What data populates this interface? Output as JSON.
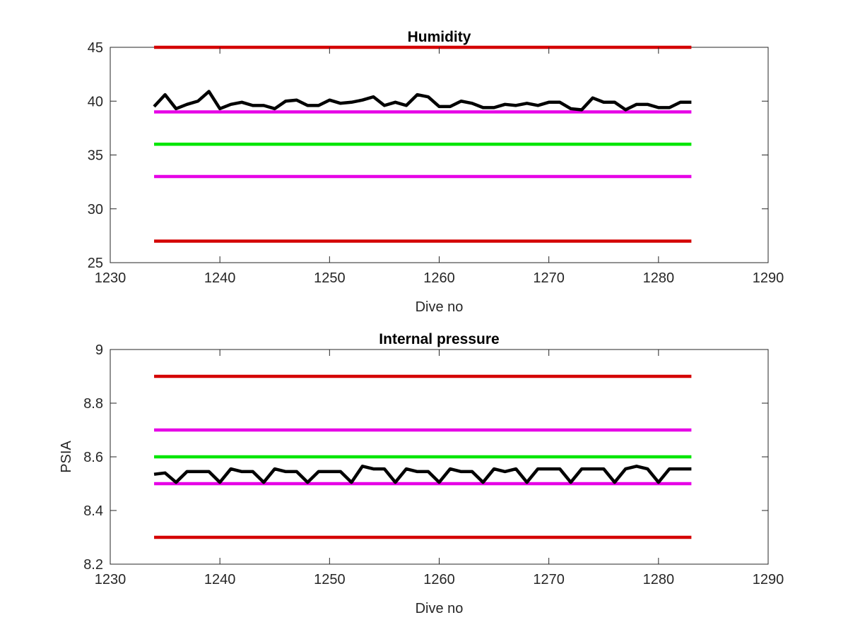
{
  "chart_data": [
    {
      "type": "line",
      "title": "Humidity",
      "xlabel": "Dive no",
      "ylabel": "",
      "xlim": [
        1230,
        1290
      ],
      "ylim": [
        25,
        45
      ],
      "xticks": [
        1230,
        1240,
        1250,
        1260,
        1270,
        1280,
        1290
      ],
      "yticks": [
        25,
        30,
        35,
        40,
        45
      ],
      "xtick_labels": [
        "1230",
        "1240",
        "1250",
        "1260",
        "1270",
        "1280",
        "1290"
      ],
      "ytick_labels": [
        "25",
        "30",
        "35",
        "40",
        "45"
      ],
      "grid": false,
      "reference_lines": [
        {
          "y": 45,
          "x": [
            1234,
            1283
          ],
          "color": "#d40000"
        },
        {
          "y": 39,
          "x": [
            1234,
            1283
          ],
          "color": "#e600e6"
        },
        {
          "y": 36,
          "x": [
            1234,
            1283
          ],
          "color": "#00e600"
        },
        {
          "y": 33,
          "x": [
            1234,
            1283
          ],
          "color": "#e600e6"
        },
        {
          "y": 27,
          "x": [
            1234,
            1283
          ],
          "color": "#d40000"
        }
      ],
      "series": [
        {
          "color": "#000000",
          "x": [
            1234,
            1235,
            1236,
            1237,
            1238,
            1239,
            1240,
            1241,
            1242,
            1243,
            1244,
            1245,
            1246,
            1247,
            1248,
            1249,
            1250,
            1251,
            1252,
            1253,
            1254,
            1255,
            1256,
            1257,
            1258,
            1259,
            1260,
            1261,
            1262,
            1263,
            1264,
            1265,
            1266,
            1267,
            1268,
            1269,
            1270,
            1271,
            1272,
            1273,
            1274,
            1275,
            1276,
            1277,
            1278,
            1279,
            1280,
            1281,
            1282,
            1283
          ],
          "values": [
            39.5,
            40.6,
            39.3,
            39.7,
            40.0,
            40.9,
            39.3,
            39.7,
            39.9,
            39.6,
            39.6,
            39.3,
            40.0,
            40.1,
            39.6,
            39.6,
            40.1,
            39.8,
            39.9,
            40.1,
            40.4,
            39.6,
            39.9,
            39.6,
            40.6,
            40.4,
            39.5,
            39.5,
            40.0,
            39.8,
            39.4,
            39.4,
            39.7,
            39.6,
            39.8,
            39.6,
            39.9,
            39.9,
            39.3,
            39.2,
            40.3,
            39.9,
            39.9,
            39.2,
            39.7,
            39.7,
            39.4,
            39.4,
            39.9,
            39.9
          ]
        }
      ]
    },
    {
      "type": "line",
      "title": "Internal pressure",
      "xlabel": "Dive no",
      "ylabel": "PSIA",
      "xlim": [
        1230,
        1290
      ],
      "ylim": [
        8.2,
        9.0
      ],
      "xticks": [
        1230,
        1240,
        1250,
        1260,
        1270,
        1280,
        1290
      ],
      "yticks": [
        8.2,
        8.4,
        8.6,
        8.8,
        9.0
      ],
      "xtick_labels": [
        "1230",
        "1240",
        "1250",
        "1260",
        "1270",
        "1280",
        "1290"
      ],
      "ytick_labels": [
        "8.2",
        "8.4",
        "8.6",
        "8.8",
        "9"
      ],
      "grid": false,
      "reference_lines": [
        {
          "y": 8.9,
          "x": [
            1234,
            1283
          ],
          "color": "#d40000"
        },
        {
          "y": 8.7,
          "x": [
            1234,
            1283
          ],
          "color": "#e600e6"
        },
        {
          "y": 8.6,
          "x": [
            1234,
            1283
          ],
          "color": "#00e600"
        },
        {
          "y": 8.5,
          "x": [
            1234,
            1283
          ],
          "color": "#e600e6"
        },
        {
          "y": 8.3,
          "x": [
            1234,
            1283
          ],
          "color": "#d40000"
        }
      ],
      "series": [
        {
          "color": "#000000",
          "x": [
            1234,
            1235,
            1236,
            1237,
            1238,
            1239,
            1240,
            1241,
            1242,
            1243,
            1244,
            1245,
            1246,
            1247,
            1248,
            1249,
            1250,
            1251,
            1252,
            1253,
            1254,
            1255,
            1256,
            1257,
            1258,
            1259,
            1260,
            1261,
            1262,
            1263,
            1264,
            1265,
            1266,
            1267,
            1268,
            1269,
            1270,
            1271,
            1272,
            1273,
            1274,
            1275,
            1276,
            1277,
            1278,
            1279,
            1280,
            1281,
            1282,
            1283
          ],
          "values": [
            8.535,
            8.54,
            8.505,
            8.545,
            8.545,
            8.545,
            8.505,
            8.555,
            8.545,
            8.545,
            8.505,
            8.555,
            8.545,
            8.545,
            8.505,
            8.545,
            8.545,
            8.545,
            8.505,
            8.565,
            8.555,
            8.555,
            8.505,
            8.555,
            8.545,
            8.545,
            8.505,
            8.555,
            8.545,
            8.545,
            8.505,
            8.555,
            8.545,
            8.555,
            8.505,
            8.555,
            8.555,
            8.555,
            8.505,
            8.555,
            8.555,
            8.555,
            8.505,
            8.555,
            8.565,
            8.555,
            8.505,
            8.555,
            8.555,
            8.555
          ]
        }
      ]
    }
  ]
}
